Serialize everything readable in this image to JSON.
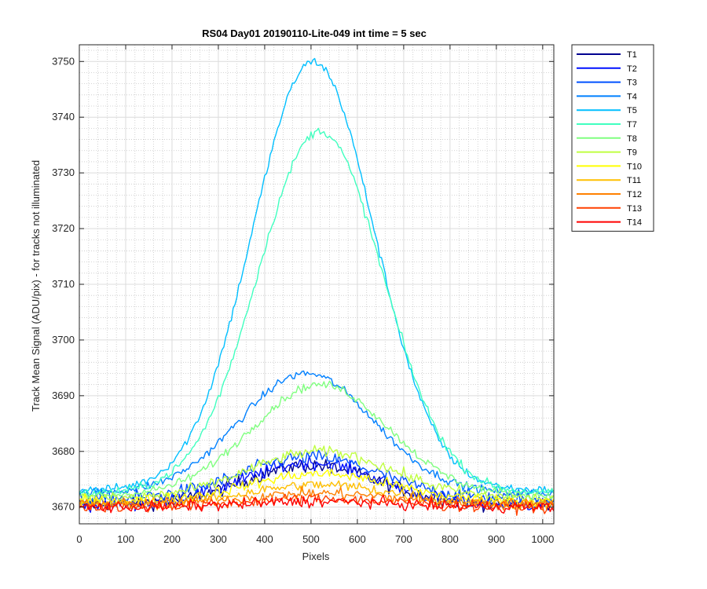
{
  "chart_data": {
    "type": "line",
    "title": "RS04 Day01 20190110-Lite-049 int time = 5 sec",
    "xlabel": "Pixels",
    "ylabel": "Track Mean Signal (ADU/pix) - for tracks not illuminated",
    "xlim": [
      0,
      1024
    ],
    "ylim": [
      3667,
      3753
    ],
    "xticks": [
      0,
      100,
      200,
      300,
      400,
      500,
      600,
      700,
      800,
      900,
      1000
    ],
    "yticks": [
      3670,
      3680,
      3690,
      3700,
      3710,
      3720,
      3730,
      3740,
      3750
    ],
    "grid": true,
    "minor_grid": true,
    "legend_position": "outside-top-right",
    "x_step": 4,
    "series": [
      {
        "name": "T1",
        "color": "#00008f",
        "base": 3670.5,
        "peak": 3677.5,
        "center": 500,
        "width": 210,
        "noise": 2.5
      },
      {
        "name": "T2",
        "color": "#0010ff",
        "base": 3670.5,
        "peak": 3678.0,
        "center": 500,
        "width": 210,
        "noise": 2.5
      },
      {
        "name": "T3",
        "color": "#0050ff",
        "base": 3671.5,
        "peak": 3679.0,
        "center": 500,
        "width": 220,
        "noise": 2.5
      },
      {
        "name": "T4",
        "color": "#0080ff",
        "base": 3672.5,
        "peak": 3694.0,
        "center": 490,
        "width": 215,
        "noise": 1.5
      },
      {
        "name": "T5",
        "color": "#00bfff",
        "base": 3673.0,
        "peak": 3750.0,
        "center": 505,
        "width": 195,
        "noise": 1.5
      },
      {
        "name": "T7",
        "color": "#40ffbf",
        "base": 3672.5,
        "peak": 3737.5,
        "center": 520,
        "width": 200,
        "noise": 1.5
      },
      {
        "name": "T8",
        "color": "#80ff80",
        "base": 3672.0,
        "peak": 3692.0,
        "center": 520,
        "width": 220,
        "noise": 1.5
      },
      {
        "name": "T9",
        "color": "#bfff40",
        "base": 3671.5,
        "peak": 3680.0,
        "center": 520,
        "width": 230,
        "noise": 2.0
      },
      {
        "name": "T10",
        "color": "#ffff00",
        "base": 3671.0,
        "peak": 3676.0,
        "center": 520,
        "width": 230,
        "noise": 2.0
      },
      {
        "name": "T11",
        "color": "#ffbf00",
        "base": 3670.5,
        "peak": 3674.0,
        "center": 520,
        "width": 230,
        "noise": 2.0
      },
      {
        "name": "T12",
        "color": "#ff8000",
        "base": 3670.5,
        "peak": 3672.5,
        "center": 520,
        "width": 230,
        "noise": 2.0
      },
      {
        "name": "T13",
        "color": "#ff4000",
        "base": 3670.0,
        "peak": 3671.5,
        "center": 520,
        "width": 230,
        "noise": 2.0
      },
      {
        "name": "T14",
        "color": "#ff0000",
        "base": 3670.0,
        "peak": 3671.0,
        "center": 520,
        "width": 230,
        "noise": 2.0
      }
    ]
  }
}
